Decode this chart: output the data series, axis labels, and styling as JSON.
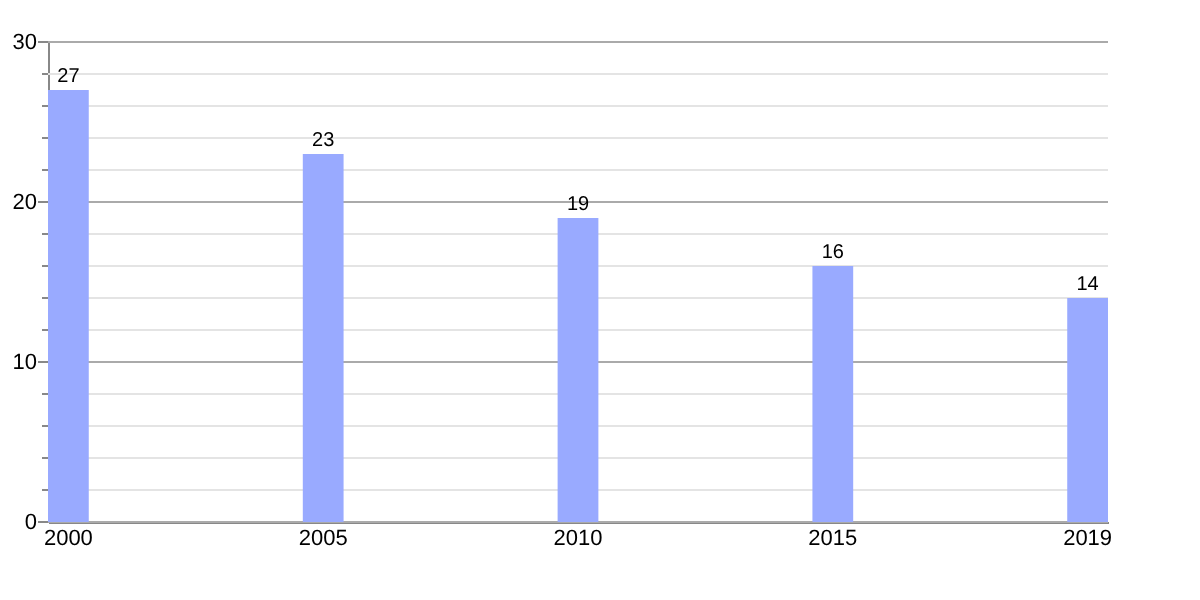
{
  "chart_data": {
    "type": "bar",
    "categories": [
      "2000",
      "2005",
      "2010",
      "2015",
      "2019"
    ],
    "values": [
      27,
      23,
      19,
      16,
      14
    ],
    "color": "#99aaff",
    "ylim": [
      0,
      30
    ],
    "yticks": [
      0,
      {
        "value": 2,
        "label": null
      },
      {
        "value": 4,
        "label": null
      },
      {
        "value": 6,
        "label": null
      },
      {
        "value": 8,
        "label": null
      },
      10,
      {
        "value": 12,
        "label": null
      },
      {
        "value": 14,
        "label": null
      },
      {
        "value": 16,
        "label": null
      },
      {
        "value": 18,
        "label": null
      },
      20,
      {
        "value": 22,
        "label": null
      },
      {
        "value": 24,
        "label": null
      },
      {
        "value": 26,
        "label": null
      },
      {
        "value": 28,
        "label": null
      },
      30
    ],
    "grid": "y",
    "data_labels": true
  }
}
